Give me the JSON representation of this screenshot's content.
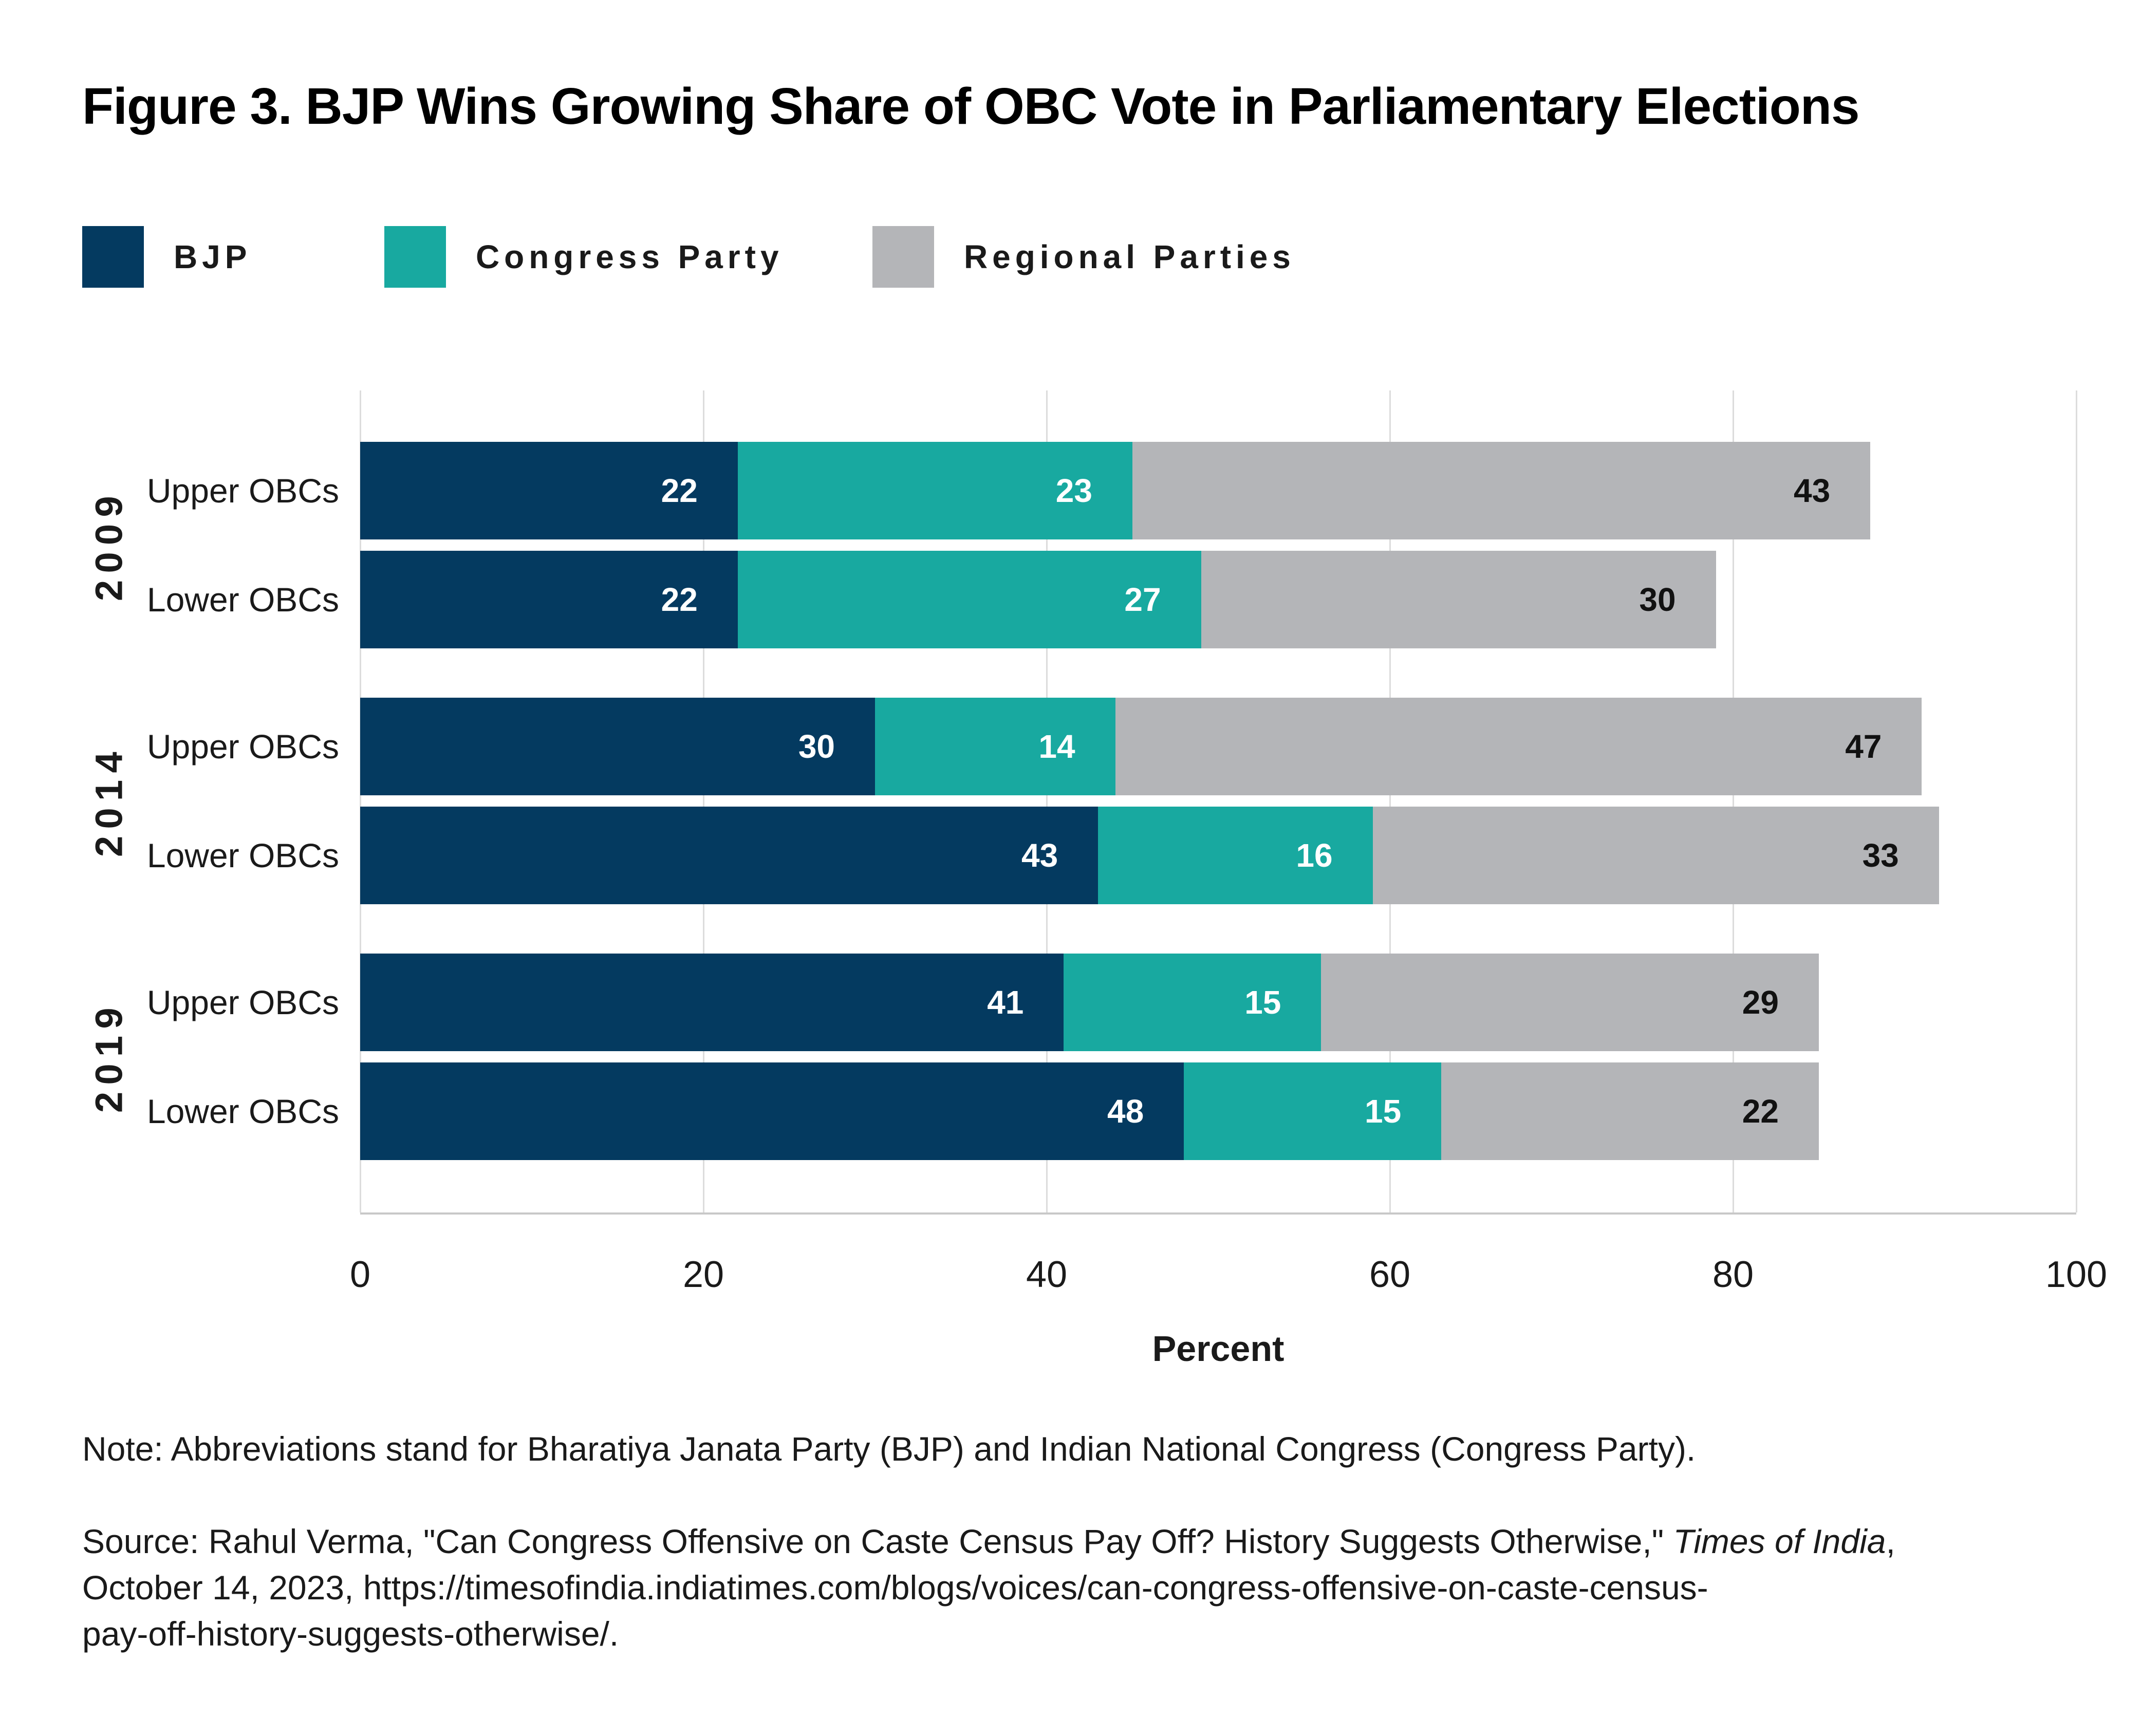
{
  "title": "Figure 3. BJP Wins Growing Share of OBC Vote in Parliamentary Elections",
  "legend": {
    "items": [
      {
        "label": "BJP",
        "color": "#043a60"
      },
      {
        "label": "Congress Party",
        "color": "#18a9a0"
      },
      {
        "label": "Regional Parties",
        "color": "#b4b5b8"
      }
    ]
  },
  "chart_data": {
    "type": "bar",
    "orientation": "horizontal",
    "stacked": true,
    "series": [
      "BJP",
      "Congress Party",
      "Regional Parties"
    ],
    "colors": [
      "#043a60",
      "#18a9a0",
      "#b4b5b8"
    ],
    "value_label_colors": [
      "#ffffff",
      "#ffffff",
      "#111111"
    ],
    "groups": [
      {
        "year": "2009",
        "rows": [
          {
            "label": "Upper OBCs",
            "values": [
              22,
              23,
              43
            ]
          },
          {
            "label": "Lower OBCs",
            "values": [
              22,
              27,
              30
            ]
          }
        ]
      },
      {
        "year": "2014",
        "rows": [
          {
            "label": "Upper OBCs",
            "values": [
              30,
              14,
              47
            ]
          },
          {
            "label": "Lower OBCs",
            "values": [
              43,
              16,
              33
            ]
          }
        ]
      },
      {
        "year": "2019",
        "rows": [
          {
            "label": "Upper OBCs",
            "values": [
              41,
              15,
              29
            ]
          },
          {
            "label": "Lower OBCs",
            "values": [
              48,
              15,
              22
            ]
          }
        ]
      }
    ],
    "xlabel": "Percent",
    "x_ticks": [
      0,
      20,
      40,
      60,
      80,
      100
    ],
    "xlim": [
      0,
      100
    ],
    "grid": "vertical",
    "legend_position": "top-left"
  },
  "note": "Note: Abbreviations stand for Bharatiya Janata Party (BJP) and Indian National Congress (Congress Party).",
  "source": {
    "line1_pre": "Source: Rahul Verma, \"Can Congress Offensive on Caste Census Pay Off? History Suggests Otherwise,\" ",
    "line1_italic": "Times of India",
    "line1_post": ",",
    "line2": "October 14, 2023, https://timesofindia.indiatimes.com/blogs/voices/can-congress-offensive-on-caste-census-",
    "line3": "pay-off-history-suggests-otherwise/."
  }
}
